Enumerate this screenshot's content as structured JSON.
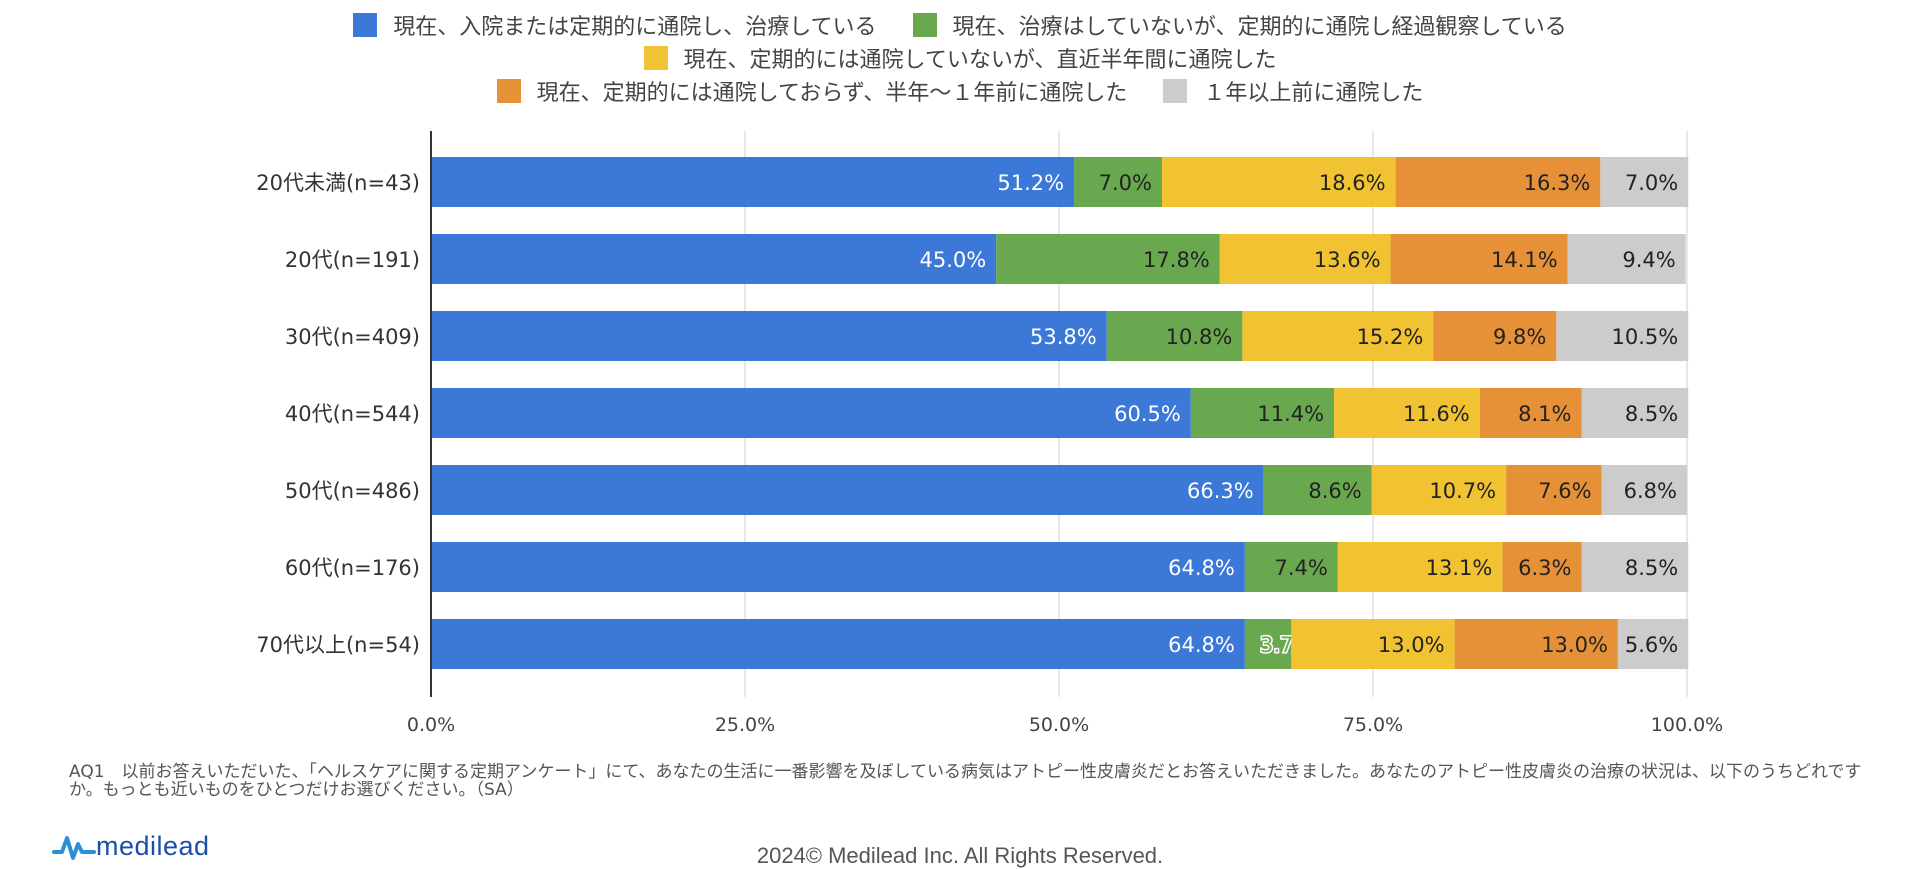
{
  "chart_data": {
    "type": "bar",
    "orientation": "horizontal",
    "stacked": true,
    "categories": [
      "20代未満(n=43)",
      "20代(n=191)",
      "30代(n=409)",
      "40代(n=544)",
      "50代(n=486)",
      "60代(n=176)",
      "70代以上(n=54)"
    ],
    "series": [
      {
        "name": "現在、入院または定期的に通院し、治療している",
        "color": "#3c78d8",
        "label_color": "#ffffff",
        "values": [
          51.2,
          45.0,
          53.8,
          60.5,
          66.3,
          64.8,
          64.8
        ]
      },
      {
        "name": "現在、治療はしていないが、定期的に通院し経過観察している",
        "color": "#6aa84f",
        "label_color": "#222222",
        "values": [
          7.0,
          17.8,
          10.8,
          11.4,
          8.6,
          7.4,
          3.7
        ]
      },
      {
        "name": "現在、定期的には通院していないが、直近半年間に通院した",
        "color": "#f1c232",
        "label_color": "#222222",
        "values": [
          18.6,
          13.6,
          15.2,
          11.6,
          10.7,
          13.1,
          13.0
        ]
      },
      {
        "name": "現在、定期的には通院しておらず、半年〜１年前に通院した",
        "color": "#e69138",
        "label_color": "#222222",
        "values": [
          16.3,
          14.1,
          9.8,
          8.1,
          7.6,
          6.3,
          13.0
        ]
      },
      {
        "name": "１年以上前に通院した",
        "color": "#cccccc",
        "label_color": "#222222",
        "values": [
          7.0,
          9.4,
          10.5,
          8.5,
          6.8,
          8.5,
          5.6
        ]
      }
    ],
    "xlim": [
      0,
      100
    ],
    "xticks": [
      "0.0%",
      "25.0%",
      "50.0%",
      "75.0%",
      "100.0%"
    ],
    "data_label_format": "percent_1dp",
    "grid": true,
    "legend_position": "top"
  },
  "note": "AQ1　以前お答えいただいた、「ヘルスケアに関する定期アンケート」にて、あなたの生活に一番影響を及ぼしている病気はアトピー性皮膚炎だとお答えいただきました。あなたのアトピー性皮膚炎の治療の状況は、以下のうちどれですか。もっとも近いものをひとつだけお選びください。（SA）",
  "logo_text": "medilead",
  "copyright": "2024© Medilead Inc. All Rights Reserved."
}
